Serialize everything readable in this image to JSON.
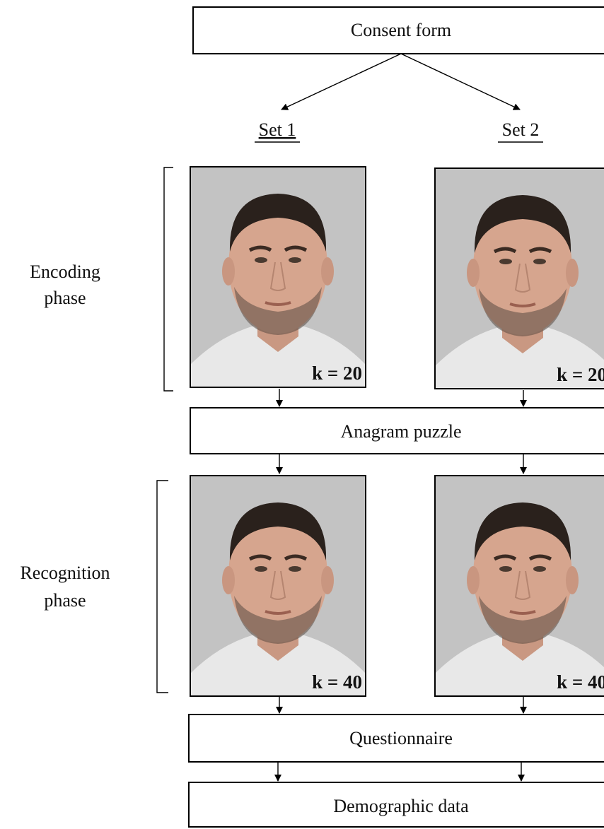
{
  "header": {
    "title": "Consent form"
  },
  "sets": [
    "Set 1",
    "Set 2"
  ],
  "phases": [
    [
      "Encoding",
      "phase"
    ],
    [
      "Recognition",
      "phase"
    ]
  ],
  "photos": [
    {
      "label": "k = 20"
    },
    {
      "label": "k = 20"
    },
    {
      "label": "k = 40"
    },
    {
      "label": "k = 40"
    }
  ],
  "steps": [
    "Anagram puzzle",
    "Questionnaire",
    "Demographic data"
  ]
}
